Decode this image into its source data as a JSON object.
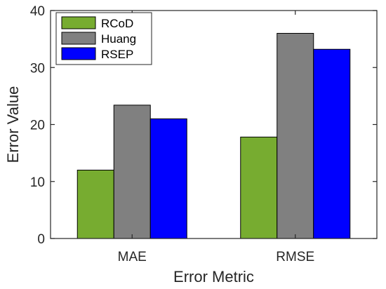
{
  "chart_data": {
    "type": "bar",
    "categories": [
      "MAE",
      "RMSE"
    ],
    "series": [
      {
        "name": "RCoD",
        "color": "#77ac30",
        "values": [
          12.0,
          17.8
        ]
      },
      {
        "name": "Huang",
        "color": "#808080",
        "values": [
          23.4,
          36.0
        ]
      },
      {
        "name": "RSEP",
        "color": "#0000ff",
        "values": [
          21.0,
          33.2
        ]
      }
    ],
    "xlabel": "Error Metric",
    "ylabel": "Error Value",
    "ylim": [
      0,
      40
    ],
    "yticks": [
      "0",
      "10",
      "20",
      "30",
      "40"
    ],
    "grid": false,
    "legend_position": "top-left"
  }
}
